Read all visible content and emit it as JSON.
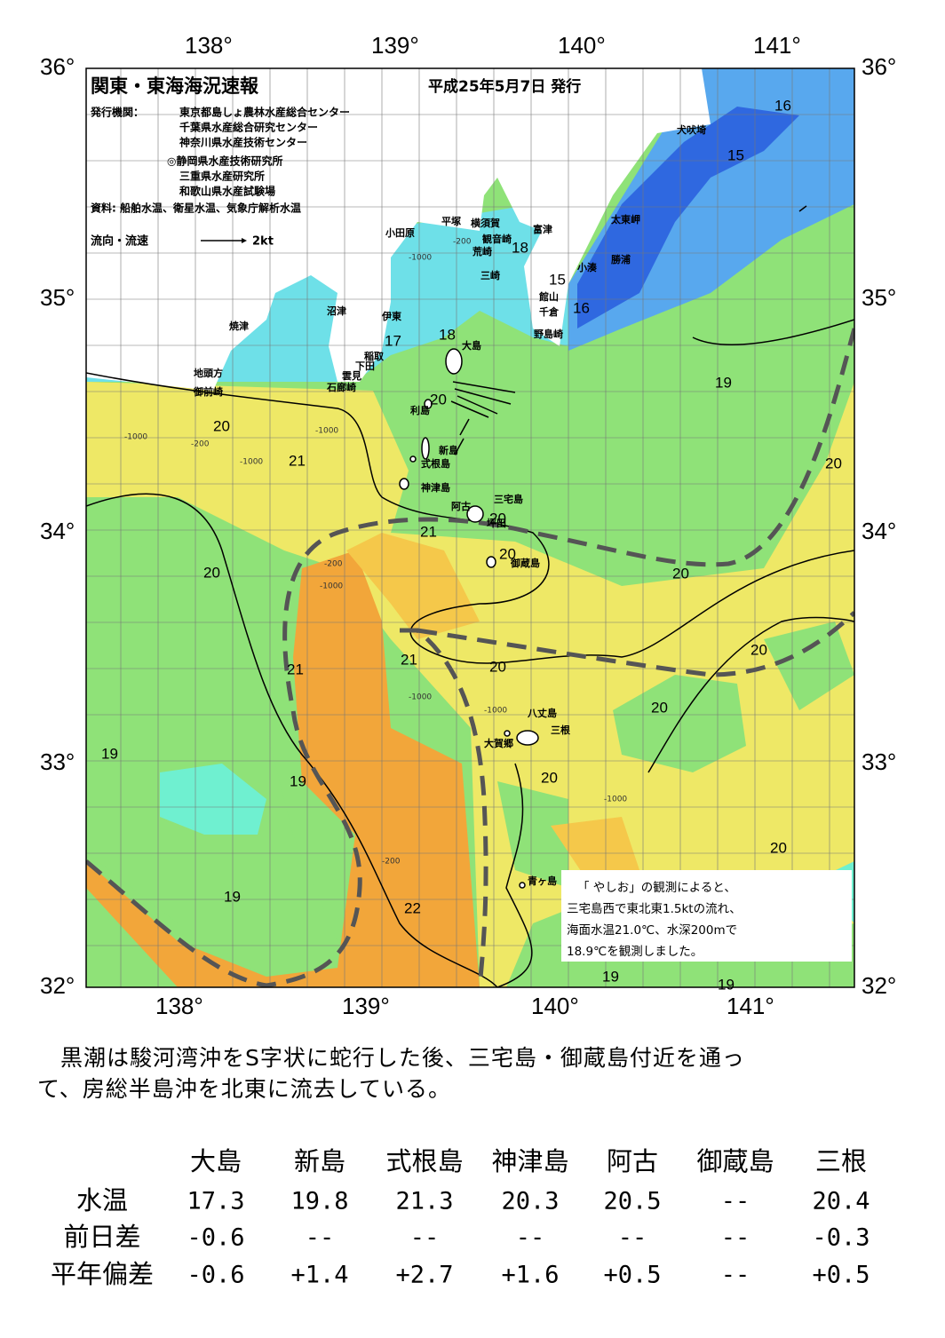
{
  "header": {
    "title": "関東・東海海況速報",
    "date": "平成25年5月7日 発行",
    "issuer_label": "発行機関：",
    "issuers": [
      "東京都島しょ農林水産総合センター",
      "千葉県水産総合研究センター",
      "神奈川県水産技術センター",
      "◎静岡県水産技術研究所",
      "三重県水産研究所",
      "和歌山県水産試験場"
    ],
    "sources": "資料: 船舶水温、衛星水温、気象庁解析水温",
    "legend_label": "流向・流速",
    "legend_scale": "2kt"
  },
  "map": {
    "lon_labels": [
      "138°",
      "139°",
      "140°",
      "141°"
    ],
    "lat_labels": [
      "36°",
      "35°",
      "34°",
      "33°",
      "32°"
    ],
    "places": [
      "犬吠埼",
      "太東岬",
      "勝浦",
      "小湊",
      "富津",
      "横須賀",
      "平塚",
      "小田原",
      "観音崎",
      "荒崎",
      "三崎",
      "館山",
      "千倉",
      "野島崎",
      "沼津",
      "伊東",
      "焼津",
      "稲取",
      "下田",
      "雲見",
      "石廊崎",
      "地頭方",
      "御前崎",
      "大島",
      "利島",
      "新島",
      "式根島",
      "神津島",
      "三宅島",
      "阿古",
      "坪田",
      "御蔵島",
      "八丈島",
      "三根",
      "大賀郷",
      "青ヶ島"
    ],
    "isotherms": [
      16,
      15,
      18,
      15,
      16,
      17,
      18,
      19,
      20,
      20,
      21,
      20,
      21,
      20,
      20,
      20,
      20,
      21,
      20,
      20,
      21,
      20,
      19,
      20,
      19,
      20,
      19,
      22,
      19,
      19
    ],
    "depths": [
      "-1000",
      "-200",
      "-1000",
      "-200",
      "-1000",
      "-1000",
      "-1000",
      "-200",
      "-1000",
      "-1000",
      "-1000",
      "-200"
    ]
  },
  "note": [
    "「 やしお」の観測によると、",
    "三宅島西で東北東1.5ktの流れ、",
    "海面水温21.0℃、水深200mで",
    "18.9℃を観測しました。"
  ],
  "summary": [
    "黒潮は駿河湾沖をS字状に蛇行した後、三宅島・御蔵島付近を通っ",
    "て、房総半島沖を北東に流去している。"
  ],
  "table": {
    "columns": [
      "大島",
      "新島",
      "式根島",
      "神津島",
      "阿古",
      "御蔵島",
      "三根"
    ],
    "rows": [
      {
        "label": "水温",
        "values": [
          "17.3",
          "19.8",
          "21.3",
          "20.3",
          "20.5",
          "--",
          "20.4"
        ]
      },
      {
        "label": "前日差",
        "values": [
          "-0.6",
          "--",
          "--",
          "--",
          "--",
          "--",
          "-0.3"
        ]
      },
      {
        "label": "平年偏差",
        "values": [
          "-0.6",
          "+1.4",
          "+2.7",
          "+1.6",
          "+0.5",
          "--",
          "+0.5"
        ]
      }
    ]
  }
}
